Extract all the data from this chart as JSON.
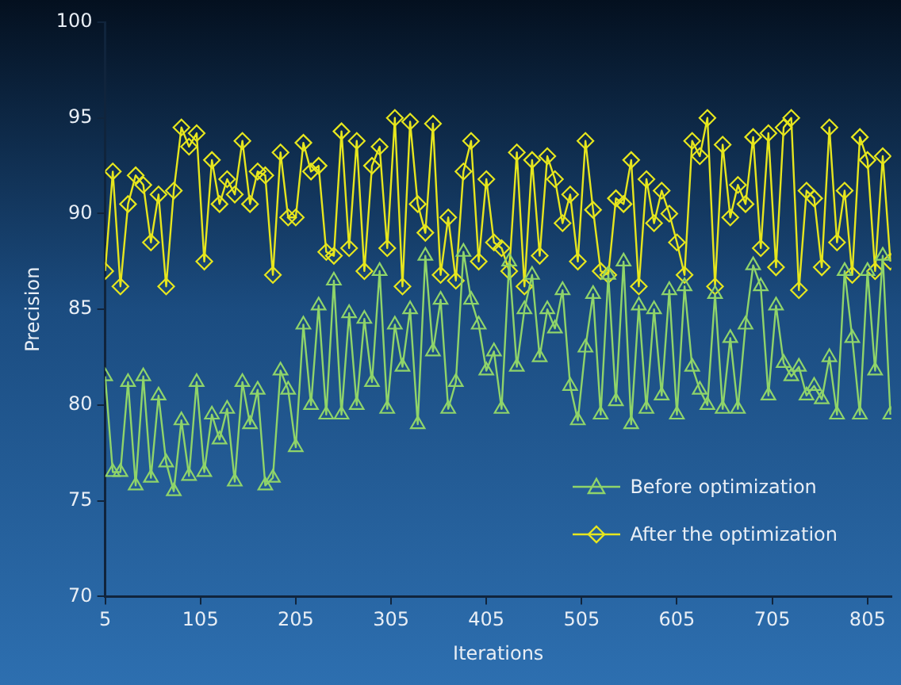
{
  "chart_data": {
    "type": "line",
    "xlabel": "Iterations",
    "ylabel": "Precision",
    "x": [
      5,
      13,
      21,
      29,
      37,
      45,
      53,
      61,
      69,
      77,
      85,
      93,
      101,
      109,
      117,
      125,
      133,
      141,
      149,
      157,
      165,
      173,
      181,
      189,
      197,
      205,
      213,
      221,
      229,
      237,
      245,
      253,
      261,
      269,
      277,
      285,
      293,
      301,
      309,
      317,
      325,
      333,
      341,
      349,
      357,
      365,
      373,
      381,
      389,
      397,
      405,
      413,
      421,
      429,
      437,
      445,
      453,
      461,
      469,
      477,
      485,
      493,
      501,
      509,
      517,
      525,
      533,
      541,
      549,
      557,
      565,
      573,
      581,
      589,
      597,
      605,
      613,
      621,
      629,
      637,
      645,
      653,
      661,
      669,
      677,
      685,
      693,
      701,
      709,
      717,
      725,
      733,
      741,
      749,
      757,
      765,
      773,
      781,
      789,
      797,
      805,
      813,
      821,
      829
    ],
    "series": [
      {
        "name": "Before optimization",
        "color": "#8fd46a",
        "marker": "triangle",
        "values": [
          81.5,
          76.5,
          76.5,
          81.2,
          75.8,
          81.5,
          76.2,
          80.5,
          77,
          75.5,
          79.2,
          76.3,
          81.2,
          76.5,
          79.5,
          78.2,
          79.8,
          76,
          81.2,
          79,
          80.8,
          75.8,
          76.2,
          81.8,
          80.8,
          77.8,
          84.2,
          80,
          85.2,
          79.5,
          86.5,
          79.5,
          84.8,
          80,
          84.5,
          81.2,
          87,
          79.8,
          84.2,
          82,
          85,
          79,
          87.8,
          82.8,
          85.5,
          79.8,
          81.2,
          88,
          85.5,
          84.2,
          81.8,
          82.8,
          79.8,
          87.5,
          82,
          85,
          86.8,
          82.5,
          85,
          84,
          86,
          81,
          79.2,
          83,
          85.8,
          79.5,
          86.8,
          80.2,
          87.5,
          79,
          85.2,
          79.8,
          85,
          80.5,
          86,
          79.5,
          86.2,
          82,
          80.8,
          80,
          85.8,
          79.8,
          83.5,
          79.8,
          84.2,
          87.3,
          86.2,
          80.5,
          85.2,
          82.2,
          81.5,
          82,
          80.5,
          81,
          80.3,
          82.5,
          79.5,
          87,
          83.5,
          79.5,
          87,
          81.8,
          87.8,
          79.5
        ]
      },
      {
        "name": "After the optimization",
        "color": "#e6e61e",
        "marker": "diamond",
        "values": [
          87,
          92.2,
          86.2,
          90.5,
          92,
          91.5,
          88.5,
          91,
          86.2,
          91.2,
          94.5,
          93.5,
          94.2,
          87.5,
          92.8,
          90.5,
          91.8,
          91,
          93.8,
          90.5,
          92.2,
          92,
          86.8,
          93.2,
          89.8,
          89.8,
          93.7,
          92.2,
          92.5,
          88,
          87.8,
          94.3,
          88.2,
          93.8,
          87,
          92.5,
          93.5,
          88.2,
          95,
          86.2,
          94.8,
          90.5,
          89,
          94.7,
          86.8,
          89.8,
          86.5,
          92.2,
          93.8,
          87.5,
          91.8,
          88.5,
          88.2,
          87,
          93.2,
          86.2,
          92.8,
          87.8,
          93,
          91.8,
          89.5,
          91,
          87.5,
          93.8,
          90.2,
          87,
          86.8,
          90.8,
          90.5,
          92.8,
          86.2,
          91.8,
          89.5,
          91.2,
          90,
          88.5,
          86.8,
          93.8,
          93,
          95,
          86.2,
          93.6,
          89.8,
          91.5,
          90.5,
          94,
          88.2,
          94.2,
          87.2,
          94.5,
          95,
          86,
          91.2,
          90.8,
          87.2,
          94.5,
          88.5,
          91.2,
          86.8,
          94,
          92.8,
          87,
          93,
          87.5
        ]
      }
    ],
    "xlim": [
      5,
      830
    ],
    "xticks": [
      5,
      105,
      205,
      305,
      405,
      505,
      605,
      705,
      805
    ],
    "ylim": [
      70,
      100
    ],
    "yticks": [
      70,
      75,
      80,
      85,
      90,
      95,
      100
    ],
    "grid": false,
    "legend": "bottom right"
  }
}
